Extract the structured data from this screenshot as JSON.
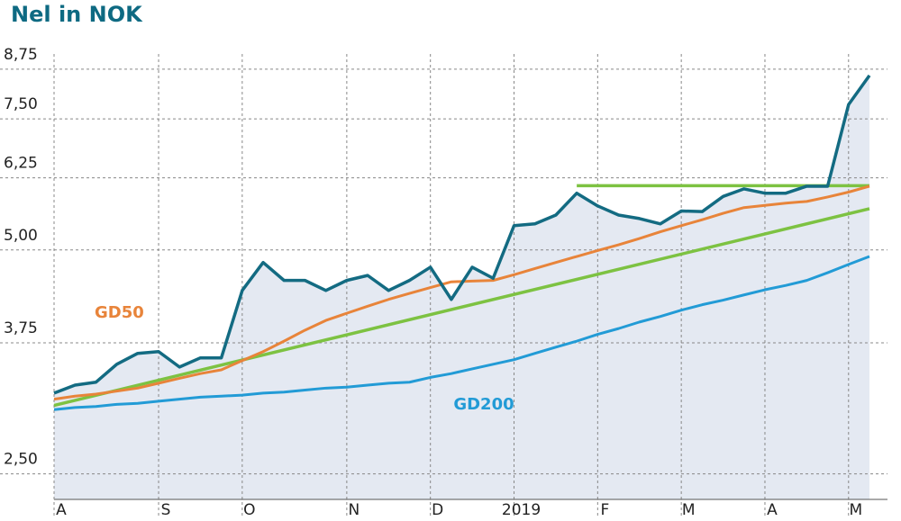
{
  "chart_data": {
    "type": "line",
    "title": "Nel in NOK",
    "log_scale": true,
    "grid": true,
    "categories": [
      "A",
      null,
      null,
      null,
      null,
      "S",
      null,
      null,
      null,
      "O",
      null,
      null,
      null,
      null,
      "N",
      null,
      null,
      null,
      "D",
      null,
      null,
      null,
      "2019",
      null,
      null,
      null,
      "F",
      null,
      null,
      null,
      "M",
      null,
      null,
      null,
      "A",
      null,
      null,
      null,
      "M",
      null
    ],
    "ylim": [
      2.31,
      9.17
    ],
    "yticks": [
      {
        "value": 2.5,
        "label": "2,50"
      },
      {
        "value": 3.75,
        "label": "3,75"
      },
      {
        "value": 5.0,
        "label": "5,00"
      },
      {
        "value": 6.25,
        "label": "6,25"
      },
      {
        "value": 7.5,
        "label": "7,50"
      },
      {
        "value": 8.75,
        "label": "8,75"
      }
    ],
    "area_color": "#e4e9f2",
    "series": [
      {
        "color": "#136b82",
        "width": 3.5,
        "values": [
          3.21,
          3.29,
          3.32,
          3.51,
          3.63,
          3.65,
          3.48,
          3.58,
          3.58,
          4.41,
          4.81,
          4.55,
          4.55,
          4.41,
          4.55,
          4.62,
          4.41,
          4.55,
          4.74,
          4.29,
          4.74,
          4.58,
          5.39,
          5.42,
          5.57,
          5.96,
          5.73,
          5.57,
          5.51,
          5.42,
          5.64,
          5.63,
          5.9,
          6.04,
          5.96,
          5.96,
          6.09,
          6.09,
          7.84,
          8.58
        ]
      },
      {
        "name": "GD50",
        "color": "#e8843a",
        "width": 3,
        "label_pos": "left",
        "values": [
          3.15,
          3.18,
          3.2,
          3.23,
          3.26,
          3.31,
          3.36,
          3.41,
          3.45,
          3.55,
          3.65,
          3.77,
          3.9,
          4.02,
          4.11,
          4.2,
          4.29,
          4.37,
          4.45,
          4.53,
          4.54,
          4.55,
          4.63,
          4.72,
          4.81,
          4.9,
          4.99,
          5.08,
          5.18,
          5.29,
          5.39,
          5.49,
          5.6,
          5.7,
          5.74,
          5.78,
          5.81,
          5.89,
          5.98,
          6.09
        ]
      },
      {
        "name": "GD200",
        "color": "#229bd6",
        "width": 3,
        "label_pos": "mid",
        "values": [
          3.05,
          3.07,
          3.08,
          3.1,
          3.11,
          3.13,
          3.15,
          3.17,
          3.18,
          3.19,
          3.21,
          3.22,
          3.24,
          3.26,
          3.27,
          3.29,
          3.31,
          3.32,
          3.37,
          3.41,
          3.46,
          3.51,
          3.56,
          3.63,
          3.7,
          3.77,
          3.85,
          3.92,
          4.0,
          4.07,
          4.15,
          4.22,
          4.28,
          4.35,
          4.42,
          4.48,
          4.55,
          4.66,
          4.78,
          4.9
        ]
      }
    ],
    "reference_lines": [
      {
        "color": "#7dc242",
        "x": [
          0,
          39
        ],
        "values": [
          3.09,
          5.68
        ]
      },
      {
        "color": "#7dc242",
        "x": [
          25,
          39
        ],
        "values": [
          6.1,
          6.1
        ]
      }
    ]
  }
}
